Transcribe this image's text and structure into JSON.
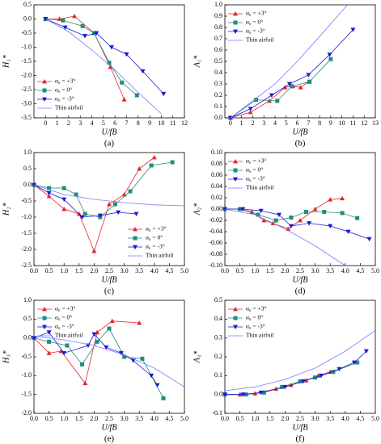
{
  "chart_data": [
    {
      "type": "line",
      "label": "(a)",
      "xlabel": "U/fB",
      "ylabel": "H₁*",
      "legend": "lower left",
      "xlim": [
        -1,
        12
      ],
      "xticks": [
        0,
        1,
        2,
        3,
        4,
        5,
        6,
        7,
        8,
        9,
        10,
        11,
        12
      ],
      "ylim": [
        -3.5,
        0.5
      ],
      "yticks": [
        -3.5,
        {
          "value": -3,
          "label": "-3.0"
        },
        -2.5,
        {
          "value": -2,
          "label": "-2.0"
        },
        -1.5,
        {
          "value": -1,
          "label": "-1.0"
        },
        -0.5,
        {
          "value": 0,
          "label": "0.0"
        },
        0.5
      ],
      "series": [
        {
          "name": "α₀ = +3°",
          "color": "#e3242b",
          "marker": "^",
          "x": [
            0,
            1.2,
            2.5,
            4.2,
            5.6,
            6.8
          ],
          "values": [
            0,
            0,
            0.1,
            -0.5,
            -1.7,
            -2.85
          ]
        },
        {
          "name": "α₀ = 0°",
          "color": "#1f8f7a",
          "marker": "s",
          "x": [
            0,
            1.5,
            3.2,
            4.2,
            5.5,
            6.6,
            7.9
          ],
          "values": [
            0,
            -0.05,
            -0.25,
            -0.5,
            -1.55,
            -2.25,
            -2.7
          ]
        },
        {
          "name": "α₀ = -3°",
          "color": "#1a1acf",
          "marker": "v",
          "x": [
            0,
            1.7,
            3.4,
            4.4,
            5.7,
            7.0,
            8.4,
            10.2
          ],
          "values": [
            0,
            -0.3,
            -0.6,
            -0.5,
            -1.0,
            -1.25,
            -1.85,
            -2.65
          ]
        },
        {
          "name": "Thin airfoil",
          "color": "#7a7aff",
          "marker": null,
          "x": [
            0,
            2,
            4,
            6,
            8,
            10
          ],
          "values": [
            0,
            -0.45,
            -1.1,
            -1.8,
            -2.6,
            -3.35
          ]
        }
      ]
    },
    {
      "type": "line",
      "label": "(b)",
      "xlabel": "U/fB",
      "ylabel": "A₁*",
      "legend": "upper left",
      "xlim": [
        -0.5,
        13
      ],
      "xticks": [
        0,
        1,
        2,
        3,
        4,
        5,
        6,
        7,
        8,
        9,
        10,
        11,
        12,
        13
      ],
      "ylim": [
        0,
        1
      ],
      "yticks": [
        {
          "value": 0,
          "label": "0.0"
        },
        0.1,
        0.2,
        0.3,
        0.4,
        0.5,
        0.6,
        0.7,
        0.8,
        0.9,
        {
          "value": 1,
          "label": "1.0"
        }
      ],
      "series": [
        {
          "name": "α₀ = +3°",
          "color": "#e3242b",
          "marker": "^",
          "x": [
            0,
            1.8,
            3.5,
            4.9,
            5.6,
            6.3,
            7.0
          ],
          "values": [
            0,
            0.05,
            0.15,
            0.27,
            0.28,
            0.27,
            0.32
          ]
        },
        {
          "name": "α₀ = 0°",
          "color": "#1f8f7a",
          "marker": "s",
          "x": [
            0,
            2.3,
            4.2,
            5.5,
            7.1,
            9.0
          ],
          "values": [
            0,
            0.16,
            0.15,
            0.28,
            0.32,
            0.52
          ]
        },
        {
          "name": "α₀ = -3°",
          "color": "#1a1acf",
          "marker": "v",
          "x": [
            0,
            1.8,
            3.7,
            5.3,
            7.0,
            8.9,
            11
          ],
          "values": [
            0,
            0.08,
            0.2,
            0.3,
            0.38,
            0.56,
            0.78
          ]
        },
        {
          "name": "Thin airfoil",
          "color": "#7a7aff",
          "marker": null,
          "x": [
            0,
            2,
            4,
            6,
            8,
            10.5
          ],
          "values": [
            0,
            0.15,
            0.3,
            0.5,
            0.72,
            1.0
          ]
        }
      ]
    },
    {
      "type": "line",
      "label": "(c)",
      "xlabel": "U/fB",
      "ylabel": "H₂*",
      "legend": "lower right",
      "xlim": [
        0,
        5
      ],
      "xticks": [
        {
          "value": 0,
          "label": "0.0"
        },
        0.5,
        {
          "value": 1,
          "label": "1.0"
        },
        1.5,
        {
          "value": 2,
          "label": "2.0"
        },
        2.5,
        {
          "value": 3,
          "label": "3.0"
        },
        3.5,
        {
          "value": 4,
          "label": "4.0"
        },
        4.5,
        {
          "value": 5,
          "label": "5.0"
        }
      ],
      "ylim": [
        -2.5,
        1
      ],
      "yticks": [
        -2.5,
        {
          "value": -2,
          "label": "-2.0"
        },
        -1.5,
        {
          "value": -1,
          "label": "-1.0"
        },
        -0.5,
        {
          "value": 0,
          "label": "0.0"
        },
        0.5,
        {
          "value": 1,
          "label": "1.0"
        }
      ],
      "series": [
        {
          "name": "α₀ = +3°",
          "color": "#e3242b",
          "marker": "^",
          "x": [
            0,
            0.5,
            1.0,
            1.5,
            2.0,
            2.5,
            3.0,
            3.5,
            4.0
          ],
          "values": [
            0,
            -0.35,
            -0.75,
            -0.9,
            -2.05,
            -0.6,
            -0.3,
            0.5,
            0.85
          ]
        },
        {
          "name": "α₀ = 0°",
          "color": "#1f8f7a",
          "marker": "s",
          "x": [
            0,
            0.5,
            1.0,
            1.4,
            1.7,
            2.2,
            2.7,
            3.2,
            3.9,
            4.6
          ],
          "values": [
            0,
            -0.1,
            -0.1,
            -0.3,
            -0.9,
            -1.0,
            -0.6,
            -0.2,
            0.6,
            0.7
          ]
        },
        {
          "name": "α₀ = -3°",
          "color": "#1a1acf",
          "marker": "v",
          "x": [
            0,
            0.5,
            1.0,
            1.6,
            2.2,
            2.8,
            3.4
          ],
          "values": [
            0,
            -0.25,
            -0.45,
            -1.0,
            -0.95,
            -0.85,
            -0.9
          ]
        },
        {
          "name": "Thin airfoil",
          "color": "#7a7aff",
          "marker": null,
          "x": [
            0,
            1,
            2,
            3,
            4,
            5
          ],
          "values": [
            0,
            -0.3,
            -0.45,
            -0.55,
            -0.62,
            -0.65
          ]
        }
      ]
    },
    {
      "type": "line",
      "label": "(d)",
      "xlabel": "U/fB",
      "ylabel": "A₂*",
      "legend": "upper left",
      "xlim": [
        0,
        5
      ],
      "xticks": [
        {
          "value": 0,
          "label": "0.0"
        },
        0.5,
        {
          "value": 1,
          "label": "1.0"
        },
        1.5,
        {
          "value": 2,
          "label": "2.0"
        },
        2.5,
        {
          "value": 3,
          "label": "3.0"
        },
        3.5,
        {
          "value": 4,
          "label": "4.0"
        },
        4.5,
        {
          "value": 5,
          "label": "5.0"
        }
      ],
      "ylim": [
        -0.1,
        0.1
      ],
      "yticks": [
        {
          "value": -0.1,
          "label": "-0.10"
        },
        -0.08,
        -0.06,
        -0.04,
        -0.02,
        {
          "value": 0,
          "label": "0.00"
        },
        0.02,
        0.04,
        0.06,
        0.08,
        {
          "value": 0.1,
          "label": "0.10"
        }
      ],
      "series": [
        {
          "name": "α₀ = +3°",
          "color": "#e3242b",
          "marker": "^",
          "x": [
            0,
            0.5,
            0.9,
            1.3,
            1.6,
            2.1,
            2.5,
            3.0,
            3.5,
            3.9
          ],
          "values": [
            0,
            0,
            -0.005,
            -0.02,
            -0.025,
            -0.035,
            -0.02,
            0,
            0.017,
            0.019
          ]
        },
        {
          "name": "α₀ = 0°",
          "color": "#1f8f7a",
          "marker": "s",
          "x": [
            0,
            0.5,
            1.1,
            1.7,
            2.2,
            2.7,
            3.3,
            3.9,
            4.4
          ],
          "values": [
            0,
            0,
            -0.01,
            -0.02,
            -0.015,
            -0.005,
            -0.005,
            -0.007,
            -0.016
          ]
        },
        {
          "name": "α₀ = -3°",
          "color": "#1a1acf",
          "marker": "v",
          "x": [
            0,
            0.6,
            1.2,
            1.8,
            2.2,
            2.8,
            3.5,
            4.1,
            4.8
          ],
          "values": [
            0,
            0,
            -0.003,
            -0.01,
            -0.03,
            -0.025,
            -0.03,
            -0.04,
            -0.053
          ]
        },
        {
          "name": "Thin airfoil",
          "color": "#7a7aff",
          "marker": null,
          "x": [
            0,
            1,
            2,
            3,
            4
          ],
          "values": [
            0,
            -0.01,
            -0.035,
            -0.065,
            -0.1
          ]
        }
      ]
    },
    {
      "type": "line",
      "label": "(e)",
      "xlabel": "U/fB",
      "ylabel": "H₃*",
      "legend": "upper left",
      "xlim": [
        0,
        5
      ],
      "xticks": [
        {
          "value": 0,
          "label": "0.0"
        },
        0.5,
        {
          "value": 1,
          "label": "1.0"
        },
        1.5,
        {
          "value": 2,
          "label": "2.0"
        },
        2.5,
        {
          "value": 3,
          "label": "3.0"
        },
        3.5,
        {
          "value": 4,
          "label": "4.0"
        },
        4.5,
        {
          "value": 5,
          "label": "5.0"
        }
      ],
      "ylim": [
        -2,
        1
      ],
      "yticks": [
        {
          "value": -2,
          "label": "-2.0"
        },
        -1.5,
        {
          "value": -1,
          "label": "-1.0"
        },
        -0.5,
        {
          "value": 0,
          "label": "0.0"
        },
        0.5,
        {
          "value": 1,
          "label": "1.0"
        }
      ],
      "series": [
        {
          "name": "α₀ = +3°",
          "color": "#e3242b",
          "marker": "^",
          "x": [
            0,
            0.5,
            0.9,
            1.7,
            2.1,
            2.6,
            3.5
          ],
          "values": [
            0,
            -0.4,
            -0.35,
            -1.2,
            0.15,
            0.45,
            0.4
          ]
        },
        {
          "name": "α₀ = 0°",
          "color": "#1f8f7a",
          "marker": "s",
          "x": [
            0,
            0.5,
            1.1,
            1.6,
            2.1,
            2.5,
            3.0,
            3.6,
            4.3
          ],
          "values": [
            0,
            -0.1,
            -0.2,
            -0.7,
            -0.1,
            0.25,
            -0.5,
            -0.55,
            -1.6
          ]
        },
        {
          "name": "α₀ = -3°",
          "color": "#1a1acf",
          "marker": "v",
          "x": [
            0,
            0.5,
            1.0,
            1.8,
            2.0,
            2.4,
            2.9,
            3.3,
            3.9,
            4.1
          ],
          "values": [
            0,
            0.15,
            -0.4,
            -0.2,
            0.1,
            -0.25,
            -0.4,
            -0.6,
            -1.0,
            -1.25
          ]
        },
        {
          "name": "Thin airfoil",
          "color": "#7a7aff",
          "marker": null,
          "x": [
            0,
            1,
            2,
            3,
            4,
            5
          ],
          "values": [
            0.05,
            -0.05,
            -0.2,
            -0.45,
            -0.8,
            -1.3
          ]
        }
      ]
    },
    {
      "type": "line",
      "label": "(f)",
      "xlabel": "U/fB",
      "ylabel": "A₃*",
      "legend": "upper left",
      "xlim": [
        0,
        5
      ],
      "xticks": [
        {
          "value": 0,
          "label": "0.0"
        },
        0.5,
        {
          "value": 1,
          "label": "1.0"
        },
        1.5,
        {
          "value": 2,
          "label": "2.0"
        },
        2.5,
        {
          "value": 3,
          "label": "3.0"
        },
        3.5,
        {
          "value": 4,
          "label": "4.0"
        },
        4.5,
        {
          "value": 5,
          "label": "5.0"
        }
      ],
      "ylim": [
        -0.1,
        0.5
      ],
      "yticks": [
        -0.1,
        {
          "value": 0,
          "label": "0.0"
        },
        0.1,
        0.2,
        0.3,
        0.4,
        0.5
      ],
      "series": [
        {
          "name": "α₀ = +3°",
          "color": "#e3242b",
          "marker": "^",
          "x": [
            0,
            0.5,
            1,
            1.7,
            2.2,
            2.7,
            3.1,
            3.5
          ],
          "values": [
            0,
            0,
            0.005,
            0.03,
            0.05,
            0.075,
            0.1,
            0.12
          ]
        },
        {
          "name": "α₀ = 0°",
          "color": "#1f8f7a",
          "marker": "s",
          "x": [
            0,
            0.7,
            1.3,
            1.9,
            2.5,
            3.0,
            3.6,
            4.4
          ],
          "values": [
            0,
            0,
            0.01,
            0.04,
            0.07,
            0.09,
            0.12,
            0.17
          ]
        },
        {
          "name": "α₀ = -3°",
          "color": "#1a1acf",
          "marker": "v",
          "x": [
            0,
            0.6,
            1.2,
            2.0,
            2.6,
            3.2,
            3.8,
            4.3,
            4.7
          ],
          "values": [
            0,
            0,
            0.01,
            0.04,
            0.07,
            0.1,
            0.135,
            0.17,
            0.23
          ]
        },
        {
          "name": "Thin airfoil",
          "color": "#7a7aff",
          "marker": null,
          "x": [
            0,
            1,
            2,
            3,
            4,
            5
          ],
          "values": [
            0.02,
            0.04,
            0.08,
            0.14,
            0.23,
            0.34
          ]
        }
      ]
    }
  ]
}
